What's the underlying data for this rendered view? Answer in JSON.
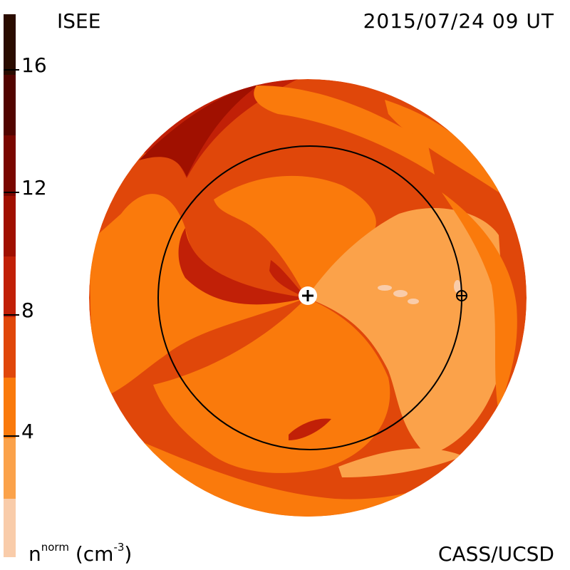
{
  "header": {
    "organization": "ISEE",
    "timestamp": "2015/07/24 09 UT"
  },
  "footer": {
    "credit": "CASS/UCSD",
    "quantity_label": "n",
    "quantity_superscript": "norm",
    "unit_label": "(cm",
    "unit_superscript": "-3",
    "unit_close": ")"
  },
  "colorbar": {
    "tick_labels": [
      "16",
      "12",
      "8",
      "4"
    ],
    "tick_values": [
      16,
      12,
      8,
      4
    ],
    "range": [
      0,
      18
    ],
    "levels": [
      {
        "from": 0,
        "to": 2,
        "color": "#f9ccaa"
      },
      {
        "from": 2,
        "to": 4,
        "color": "#fba24a"
      },
      {
        "from": 4,
        "to": 6,
        "color": "#fa7a0c"
      },
      {
        "from": 6,
        "to": 8,
        "color": "#e0470a"
      },
      {
        "from": 8,
        "to": 10,
        "color": "#c12007"
      },
      {
        "from": 10,
        "to": 12,
        "color": "#a01000"
      },
      {
        "from": 12,
        "to": 14,
        "color": "#7a0700"
      },
      {
        "from": 14,
        "to": 16,
        "color": "#520400"
      },
      {
        "from": 16,
        "to": 18,
        "color": "#2a0c00"
      }
    ]
  },
  "map": {
    "sun_symbol": "+",
    "earth_symbol": "⊕",
    "colors": {
      "level_2_4": "#fba24a",
      "level_4_6": "#fa7a0c",
      "level_6_8": "#e0470a",
      "level_8_10": "#c12007",
      "level_10_12": "#a01000",
      "level_0_2": "#f9ccaa"
    }
  }
}
